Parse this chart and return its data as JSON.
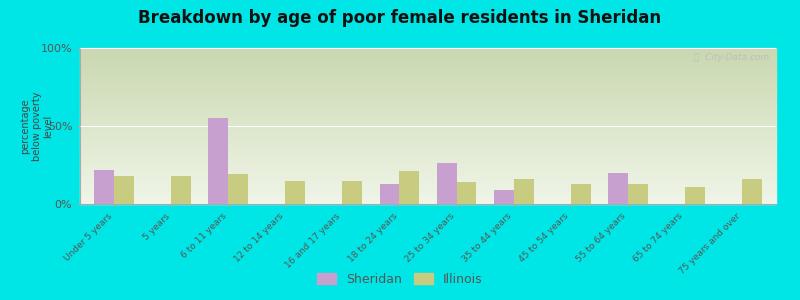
{
  "title": "Breakdown by age of poor female residents in Sheridan",
  "ylabel": "percentage\nbelow poverty\nlevel",
  "categories": [
    "Under 5 years",
    "5 years",
    "6 to 11 years",
    "12 to 14 years",
    "16 and 17 years",
    "18 to 24 years",
    "25 to 34 years",
    "35 to 44 years",
    "45 to 54 years",
    "55 to 64 years",
    "65 to 74 years",
    "75 years and over"
  ],
  "sheridan_values": [
    22,
    0,
    55,
    0,
    0,
    13,
    26,
    9,
    0,
    20,
    0,
    0
  ],
  "illinois_values": [
    18,
    18,
    19,
    15,
    15,
    21,
    14,
    16,
    13,
    13,
    11,
    16
  ],
  "sheridan_color": "#c8a0d0",
  "illinois_color": "#c8cc80",
  "bg_outer": "#00e5e5",
  "bg_plot_top": "#c8d8b0",
  "bg_plot_bottom": "#f0f5e8",
  "ylim": [
    0,
    100
  ],
  "yticks": [
    0,
    50,
    100
  ],
  "ytick_labels": [
    "0%",
    "50%",
    "100%"
  ],
  "bar_width": 0.35,
  "title_fontsize": 12,
  "legend_labels": [
    "Sheridan",
    "Illinois"
  ],
  "watermark": "ⓘ  City-Data.com"
}
